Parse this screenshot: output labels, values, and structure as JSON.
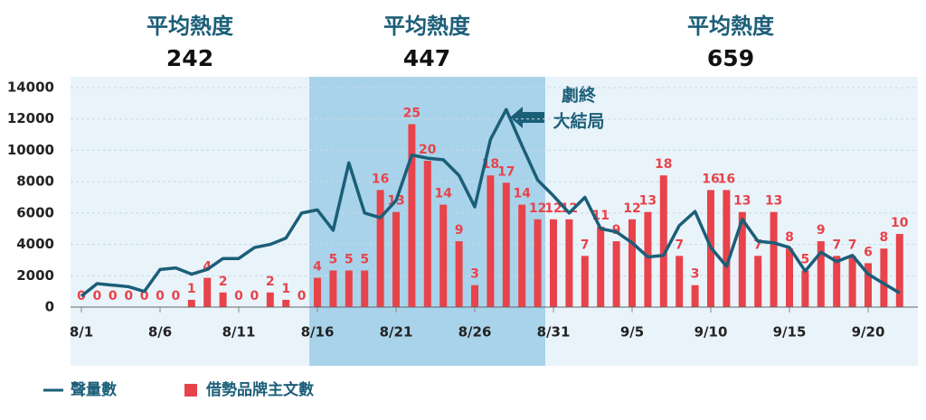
{
  "chart_data": {
    "type": "bar-line",
    "periods": [
      {
        "title": "平均熱度",
        "value": 242
      },
      {
        "title": "平均熱度",
        "value": 447
      },
      {
        "title": "平均熱度",
        "value": 659
      }
    ],
    "annotation": [
      "劇終",
      "大結局"
    ],
    "categories": [
      "8/1",
      null,
      null,
      null,
      null,
      "8/6",
      null,
      null,
      null,
      null,
      "8/11",
      null,
      null,
      null,
      null,
      "8/16",
      null,
      null,
      null,
      null,
      "8/21",
      null,
      null,
      null,
      null,
      "8/26",
      null,
      null,
      null,
      null,
      "8/31",
      null,
      null,
      null,
      null,
      "9/5",
      null,
      null,
      null,
      null,
      "9/10",
      null,
      null,
      null,
      null,
      "9/15",
      null,
      null,
      null,
      null,
      "9/20",
      null,
      null
    ],
    "series": [
      {
        "name": "聲量數",
        "type": "line",
        "color": "#1b5e78",
        "values": [
          700,
          1500,
          1400,
          1300,
          1000,
          2400,
          2500,
          2100,
          2400,
          3100,
          3100,
          3800,
          4000,
          4400,
          6000,
          6200,
          4900,
          9200,
          6000,
          5700,
          6800,
          9700,
          9500,
          9400,
          8400,
          6400,
          10700,
          12600,
          10300,
          8100,
          7100,
          6000,
          7000,
          5000,
          4800,
          4100,
          3200,
          3300,
          5200,
          6100,
          3800,
          2600,
          5600,
          4200,
          4100,
          3800,
          2300,
          3500,
          2900,
          3300,
          2100,
          1500,
          900
        ]
      },
      {
        "name": "借勢品牌主文數",
        "type": "bar",
        "color": "#e8434b",
        "axis": "y2",
        "values": [
          0,
          0,
          0,
          0,
          0,
          0,
          0,
          1,
          4,
          2,
          0,
          0,
          2,
          1,
          0,
          4,
          5,
          5,
          5,
          16,
          13,
          25,
          20,
          14,
          9,
          3,
          18,
          17,
          14,
          12,
          12,
          12,
          7,
          11,
          9,
          12,
          13,
          18,
          7,
          3,
          16,
          16,
          13,
          7,
          13,
          8,
          5,
          9,
          7,
          7,
          6,
          8,
          10
        ]
      }
    ],
    "ylim": [
      0,
      14000
    ],
    "yticks": [
      0,
      2000,
      4000,
      6000,
      8000,
      10000,
      12000,
      14000
    ],
    "y2lim": [
      0,
      30
    ],
    "grid": true
  }
}
